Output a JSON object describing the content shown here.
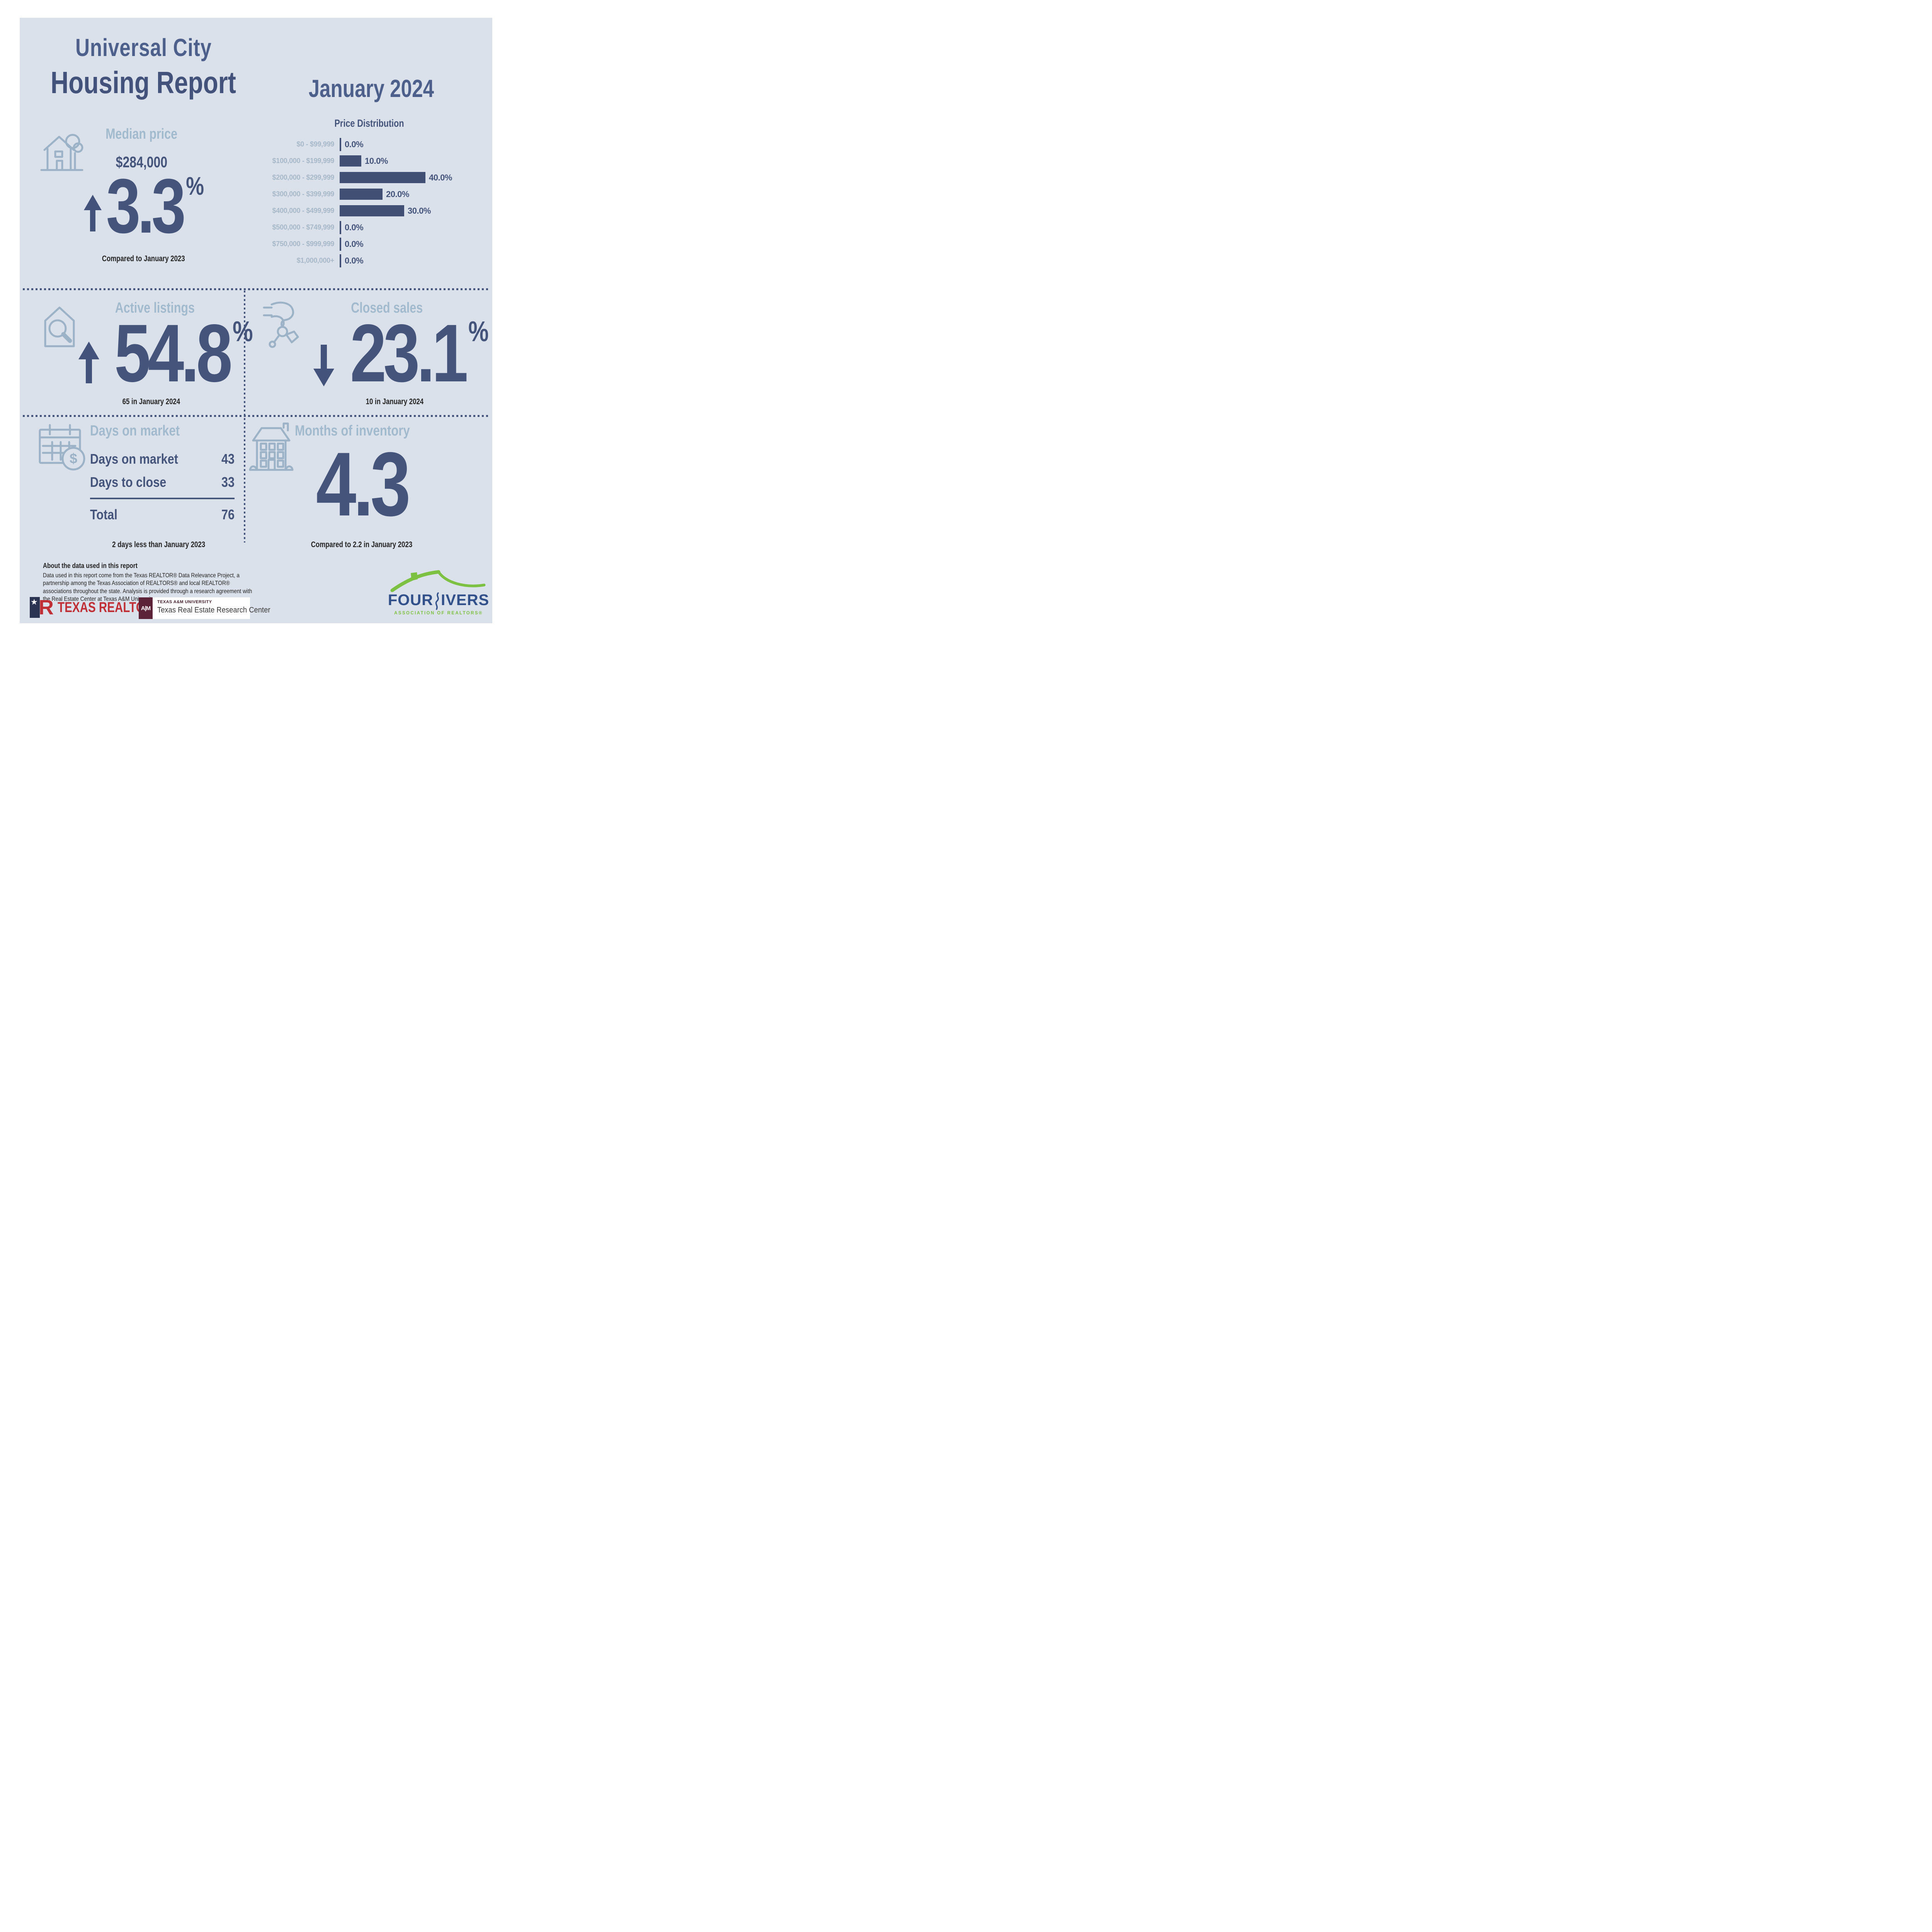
{
  "page": {
    "title_city": "Universal City",
    "title_report": "Housing Report",
    "period": "January 2024"
  },
  "colors": {
    "card_bg": "#dbe1eb",
    "title_blue": "#4d5f8b",
    "dark_blue": "#45547b",
    "bar_blue": "#404f73",
    "heading_light_blue": "#a2bacd",
    "label_light_blue": "#a7b8c8",
    "icon_blue": "#9cb3c7",
    "dark_text": "#242424",
    "texas_realtors_red": "#bf2f35",
    "texas_realtors_navy": "#2b3353",
    "tamu_maroon": "#5c2238",
    "four_rivers_green": "#7cc142",
    "four_rivers_navy": "#32508a"
  },
  "median_price": {
    "heading": "Median price",
    "value": "$284,000",
    "change": "3.3",
    "percent_sign": "%",
    "direction": "up",
    "caption": "Compared to January 2023"
  },
  "chart_data": {
    "type": "bar",
    "orientation": "horizontal",
    "title": "Price Distribution",
    "categories": [
      "$0 - $99,999",
      "$100,000 - $199,999",
      "$200,000 - $299,999",
      "$300,000 - $399,999",
      "$400,000 - $499,999",
      "$500,000 - $749,999",
      "$750,000 - $999,999",
      "$1,000,000+"
    ],
    "values": [
      0.0,
      10.0,
      40.0,
      20.0,
      30.0,
      0.0,
      0.0,
      0.0
    ],
    "value_labels": [
      "0.0%",
      "10.0%",
      "40.0%",
      "20.0%",
      "30.0%",
      "0.0%",
      "0.0%",
      "0.0%"
    ],
    "unit": "%",
    "xlim": [
      0,
      40
    ],
    "grid": false,
    "legend": false,
    "bar_color": "#404f73",
    "category_color": "#a7b8c8",
    "value_color": "#45547b"
  },
  "active_listings": {
    "heading": "Active listings",
    "change": "54.8",
    "percent_sign": "%",
    "direction": "up",
    "caption": "65 in January 2024"
  },
  "closed_sales": {
    "heading": "Closed sales",
    "change": "23.1",
    "percent_sign": "%",
    "direction": "down",
    "caption": "10 in January 2024"
  },
  "days_on_market": {
    "heading": "Days on market",
    "rows": [
      {
        "label": "Days on market",
        "value": "43"
      },
      {
        "label": "Days to close",
        "value": "33"
      }
    ],
    "total_label": "Total",
    "total_value": "76",
    "caption": "2 days less than January 2023"
  },
  "months_of_inventory": {
    "heading": "Months of inventory",
    "value": "4.3",
    "caption": "Compared to 2.2 in January 2023"
  },
  "about": {
    "heading": "About the data used in this report",
    "body": "Data used in this report come from the Texas REALTOR® Data Relevance Project, a partnership among the Texas Association of REALTORS® and local REALTOR® associations throughout the state. Analysis is provided through a research agreement with the Real Estate Center at Texas A&M University."
  },
  "logos": {
    "texas_realtors": {
      "r_mark": "R",
      "star": "★",
      "text": "TEXAS REALTORS",
      "reg": "®"
    },
    "tamu": {
      "monogram": "A|M",
      "line1": "TEXAS A&M UNIVERSITY",
      "line2": "Texas Real Estate Research Center"
    },
    "four_rivers": {
      "word_a": "FOUR",
      "word_b": "IVERS",
      "subtitle": "ASSOCIATION OF REALTORS®"
    }
  }
}
